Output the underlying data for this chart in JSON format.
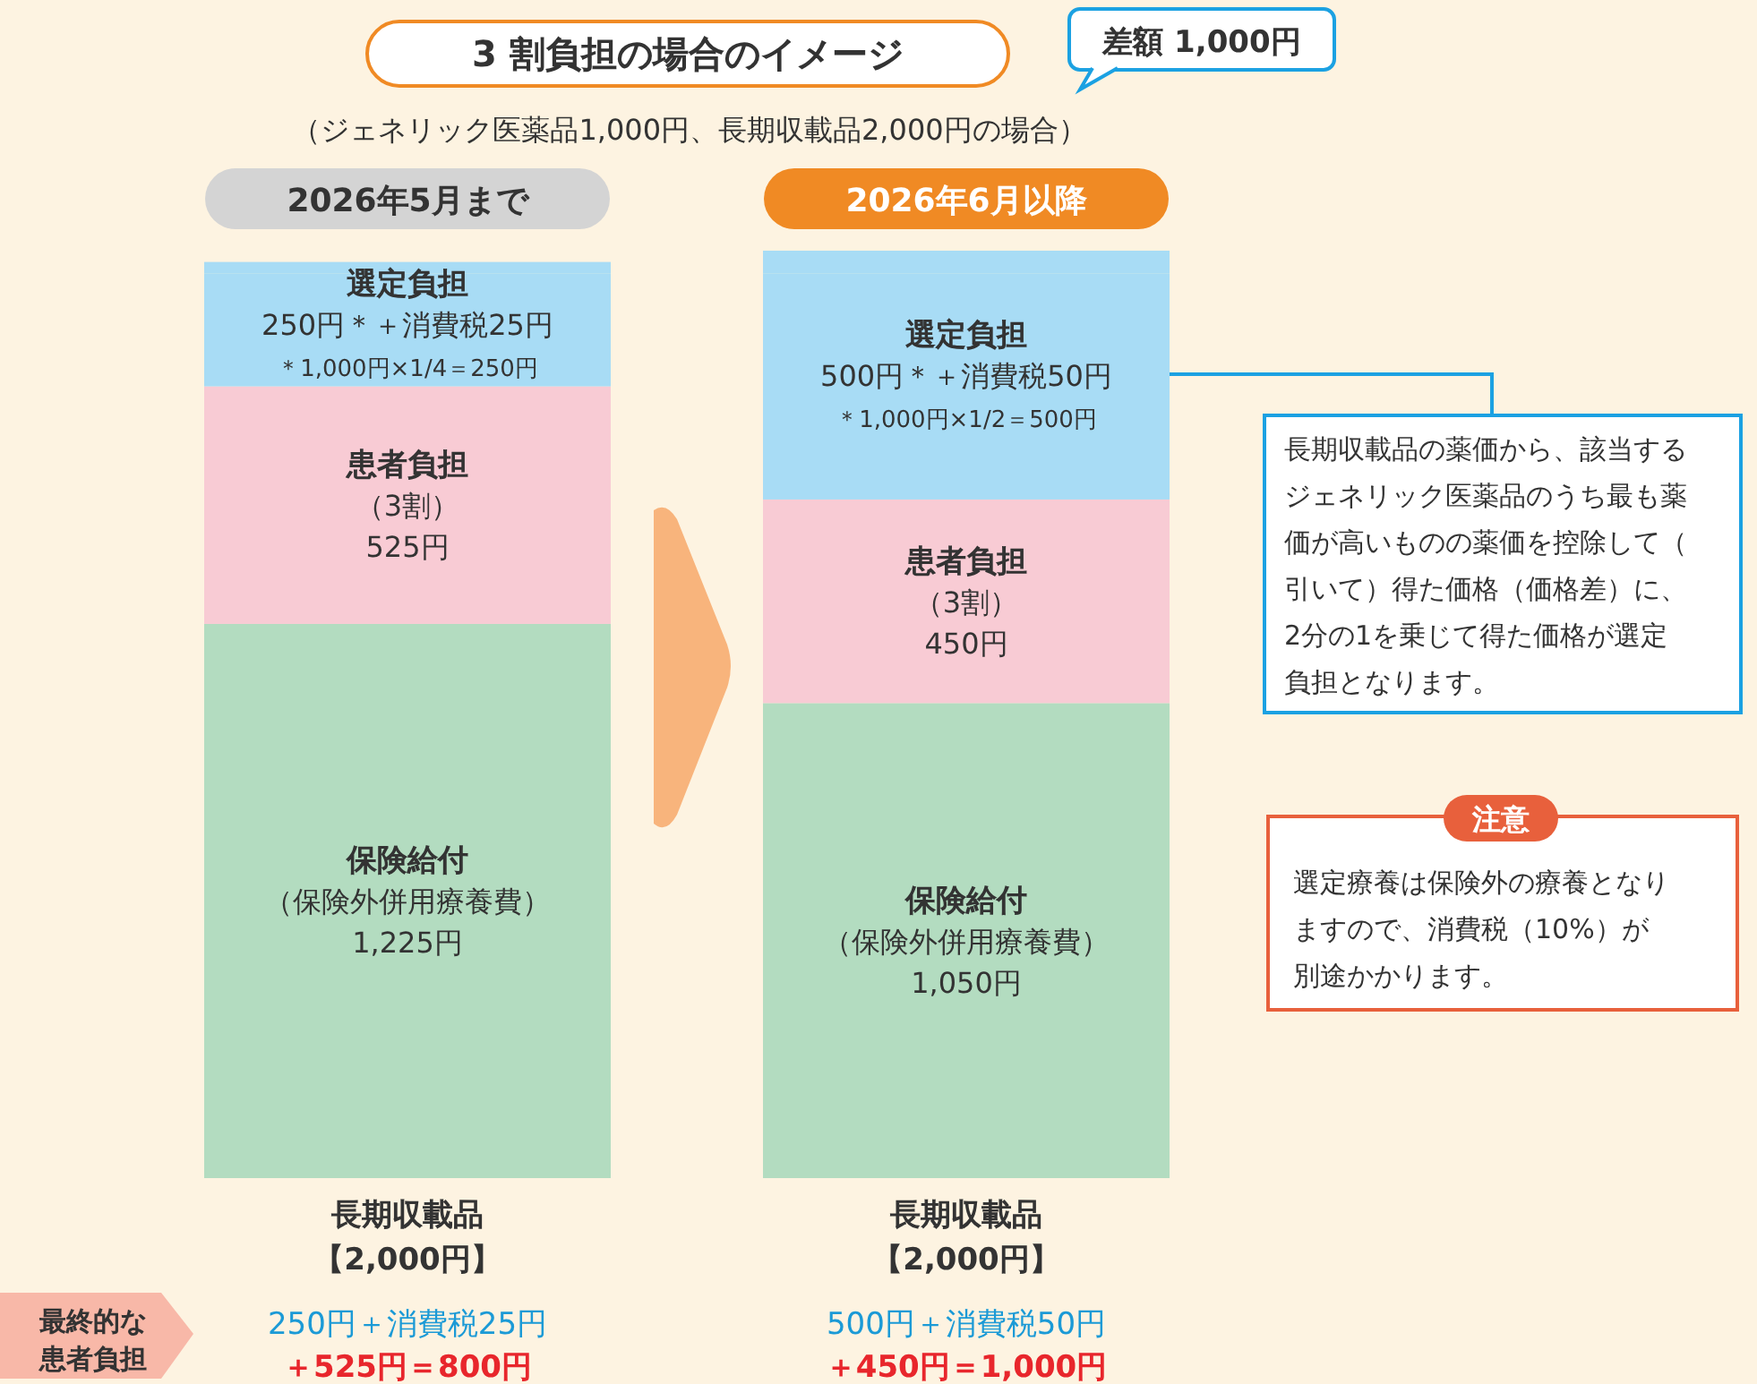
{
  "chart_data": {
    "type": "bar",
    "stacked": true,
    "title": "3 割負担の場合のイメージ",
    "subtitle": "（ジェネリック医薬品1,000円、長期収載品2,000円の場合）",
    "categories": [
      "2026年5月まで",
      "2026年6月以降"
    ],
    "series": [
      {
        "name": "保険給付",
        "color": "#b3dcc0",
        "values": [
          1225,
          1050
        ],
        "value_labels": [
          "（保険外併用療養費）\n1,225円",
          "（保険外併用療養費）\n1,050円"
        ]
      },
      {
        "name": "患者負担",
        "color": "#f8cbd4",
        "values": [
          525,
          450
        ],
        "value_labels": [
          "（3割）\n525円",
          "（3割）\n450円"
        ]
      },
      {
        "name": "選定負担",
        "color": "#a8dcf5",
        "values": [
          250,
          500
        ],
        "value_labels": [
          "250円＊",
          "500円＊"
        ]
      },
      {
        "color": "#a8dcf5",
        "values": [
          25,
          50
        ],
        "value_labels": [
          "＋消費税25円",
          "＋消費税50円"
        ]
      }
    ],
    "annotations": [
      "差額 1,000円",
      "長期収載品の薬価から、該当するジェネリック医薬品のうち最も薬価が高いものの薬価を控除して（引いて）得た価格（価格差）に、2分の1を乗じて得た価格が選定負担となります。",
      "注意",
      "選定療養は保険外の療養となりますので、消費税（10%）が別途かかります。",
      "長期収載品",
      "【2,000円】",
      "長期収載品",
      "【2,000円】",
      "最終的な",
      "患者負担",
      "250円＋消費税25円",
      "＋525円＝800円",
      "500円＋消費税50円",
      "＋450円＝1,000円",
      "＊1,000円×1/4＝250円",
      "＊1,000円×1/2＝500円"
    ]
  }
}
